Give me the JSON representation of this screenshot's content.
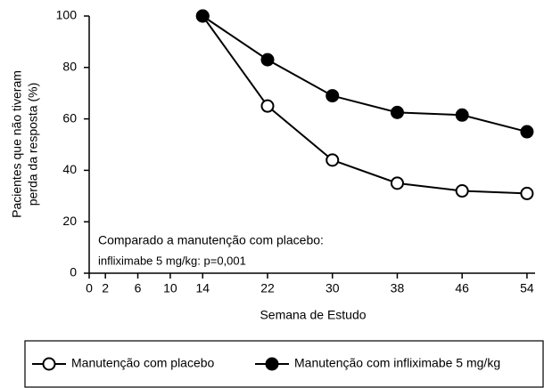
{
  "chart_data": {
    "type": "line",
    "xlabel": "Semana de Estudo",
    "ylabel": [
      "Pacientes que não tiveram",
      "perda da resposta (%)"
    ],
    "annotations": [
      "Comparado a manutenção com placebo:",
      "infliximabe 5 mg/kg: p=0,001"
    ],
    "x": [
      14,
      22,
      30,
      38,
      46,
      54
    ],
    "series": [
      {
        "name": "Manutenção com placebo",
        "color": "#000000",
        "marker_face": "#ffffff",
        "values": [
          100,
          65,
          44,
          35,
          32,
          31
        ]
      },
      {
        "name": "Manutenção com infliximabe 5 mg/kg",
        "color": "#000000",
        "marker_face": "#000000",
        "values": [
          100,
          83,
          69,
          62.5,
          61.5,
          55
        ]
      }
    ],
    "xlim": [
      0,
      55
    ],
    "xticks": [
      0,
      2,
      6,
      10,
      14,
      22,
      30,
      38,
      46,
      54
    ],
    "ylim": [
      0,
      100
    ],
    "yticks": [
      0,
      20,
      40,
      60,
      80,
      100
    ],
    "grid": false
  }
}
